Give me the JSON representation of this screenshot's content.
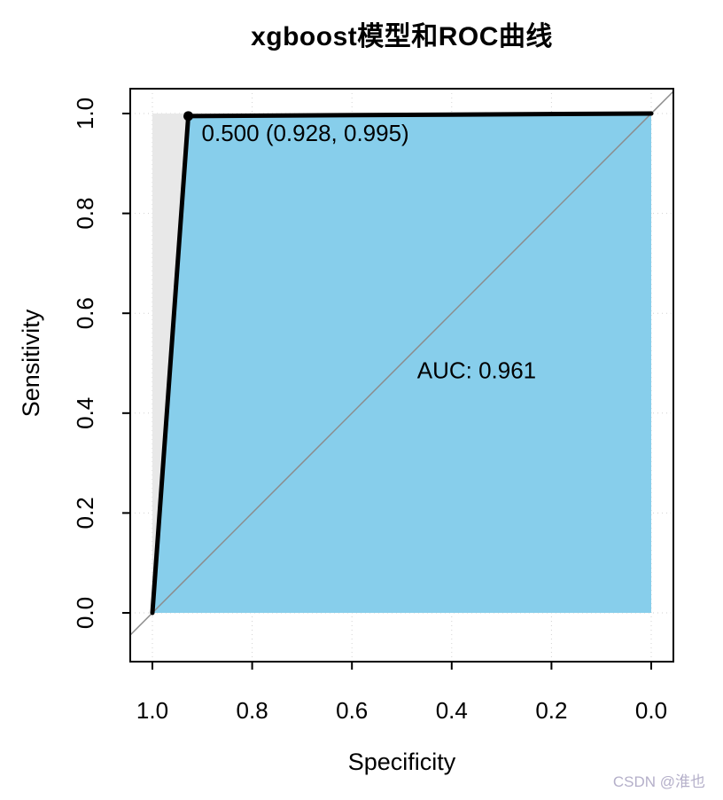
{
  "chart_data": {
    "type": "line",
    "title": "xgboost模型和ROC曲线",
    "xlabel": "Specificity",
    "ylabel": "Sensitivity",
    "xlim": [
      1.0,
      0.0
    ],
    "ylim": [
      0.0,
      1.0
    ],
    "x_axis_reversed": true,
    "x_ticks": [
      "1.0",
      "0.8",
      "0.6",
      "0.4",
      "0.2",
      "0.0"
    ],
    "y_ticks": [
      "0.0",
      "0.2",
      "0.4",
      "0.6",
      "0.8",
      "1.0"
    ],
    "grid": true,
    "roc_curve": {
      "points": [
        [
          1.0,
          0.0
        ],
        [
          0.928,
          0.995
        ],
        [
          0.0,
          1.0
        ]
      ],
      "color": "#000000"
    },
    "auc_polygon_color": "#87CEEB",
    "max_auc_polygon_color": "#e8e8e8",
    "identity_line_color": "#8c8c8c",
    "auc": 0.961,
    "auc_label": "AUC: 0.961",
    "auc_label_pos": [
      0.35,
      0.47
    ],
    "best_threshold": {
      "threshold": "0.500",
      "specificity": 0.928,
      "sensitivity": 0.995,
      "label": "0.500 (0.928, 0.995)"
    }
  },
  "watermark": {
    "text": "CSDN @淮也",
    "color": "#b4afc9"
  }
}
